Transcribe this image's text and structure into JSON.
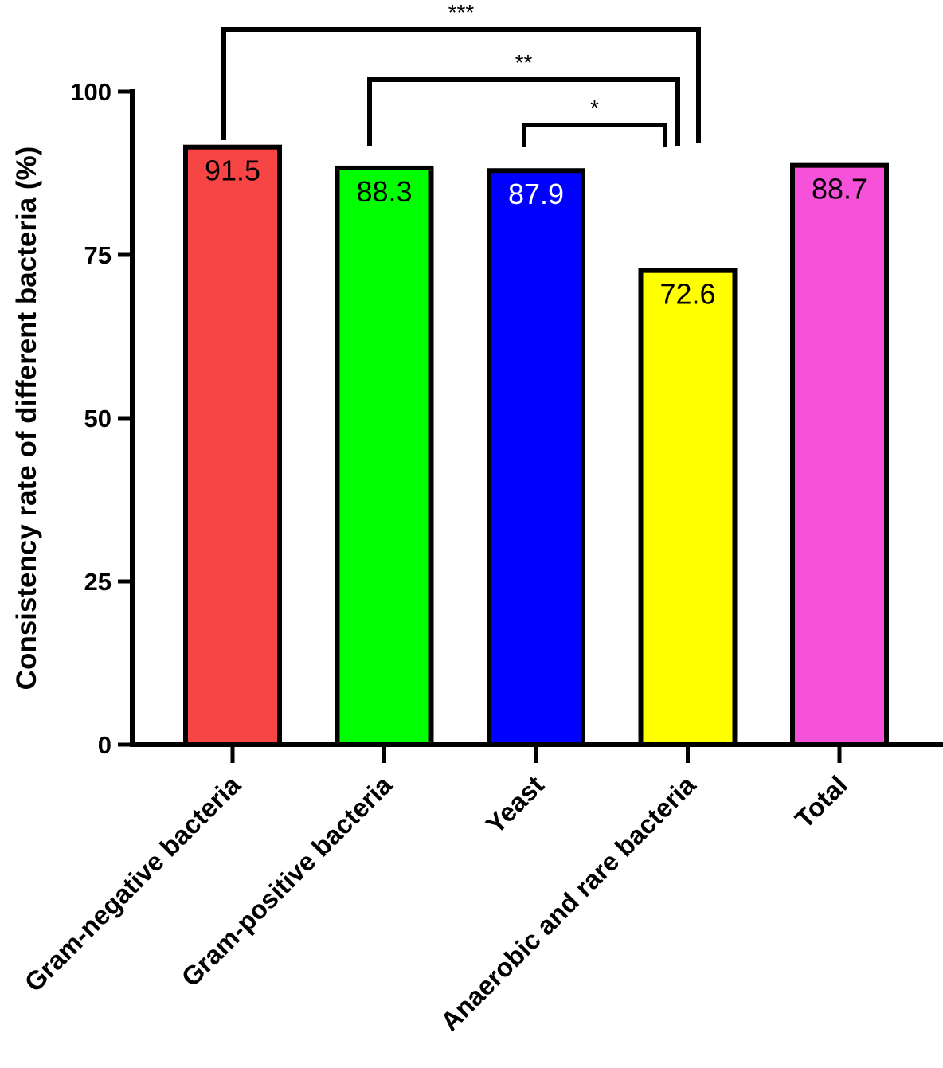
{
  "chart_data": {
    "type": "bar",
    "ylabel": "Consistency rate of different bacteria (%)",
    "xlabel": "",
    "ylim": [
      0,
      100
    ],
    "yticks": [
      "0",
      "25",
      "50",
      "75",
      "100"
    ],
    "categories": [
      "Gram-negative bacteria",
      "Gram-positive bacteria",
      "Yeast",
      "Anaerobic and rare bacteria",
      "Total"
    ],
    "values": [
      91.5,
      88.3,
      87.9,
      72.6,
      88.7
    ],
    "value_labels": [
      "91.5",
      "88.3",
      "87.9",
      "72.6",
      "88.7"
    ],
    "colors": [
      "#f74444",
      "#00ff00",
      "#0000ff",
      "#ffff00",
      "#f552d9"
    ],
    "value_label_colors": [
      "#000000",
      "#000000",
      "#ffffff",
      "#000000",
      "#000000"
    ],
    "grid": false,
    "significance": [
      {
        "from": 0,
        "to": 3,
        "label": "***"
      },
      {
        "from": 1,
        "to": 3,
        "label": "**"
      },
      {
        "from": 2,
        "to": 3,
        "label": "*"
      }
    ]
  }
}
